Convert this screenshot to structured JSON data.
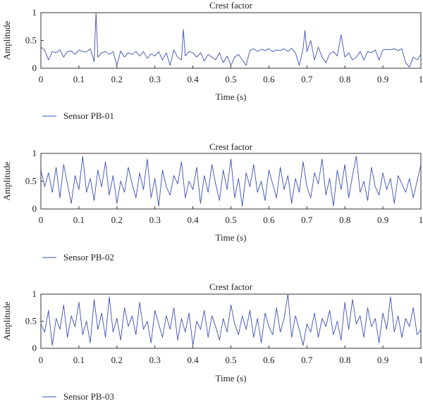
{
  "colors": {
    "series": "#3b4fb3",
    "axis": "#333333"
  },
  "chart_data": [
    {
      "type": "line",
      "title": "Crest factor",
      "xlabel": "Time (s)",
      "ylabel": "Amplitude",
      "xlim": [
        0,
        1
      ],
      "ylim": [
        0,
        1
      ],
      "xticks": [
        0,
        0.1,
        0.2,
        0.3,
        0.4,
        0.5,
        0.6,
        0.7,
        0.8,
        0.9,
        1
      ],
      "xtick_labels": [
        "0",
        "0.1",
        "0.2",
        "0.3",
        "0.4",
        "0.5",
        "0.6",
        "0.7",
        "0.8",
        "0.9",
        "1"
      ],
      "yticks": [
        0,
        0.5,
        1
      ],
      "ytick_labels": [
        "0",
        "0.5",
        "1"
      ],
      "grid": false,
      "legend_position": "bottom-left",
      "series": [
        {
          "name": "Sensor PB-01",
          "x": [
            0,
            0.01,
            0.02,
            0.03,
            0.04,
            0.05,
            0.06,
            0.07,
            0.08,
            0.09,
            0.1,
            0.11,
            0.12,
            0.13,
            0.14,
            0.145,
            0.15,
            0.16,
            0.17,
            0.18,
            0.19,
            0.2,
            0.21,
            0.22,
            0.23,
            0.24,
            0.25,
            0.26,
            0.27,
            0.28,
            0.29,
            0.3,
            0.31,
            0.32,
            0.33,
            0.34,
            0.35,
            0.36,
            0.37,
            0.375,
            0.38,
            0.39,
            0.4,
            0.41,
            0.42,
            0.43,
            0.44,
            0.45,
            0.46,
            0.47,
            0.48,
            0.49,
            0.5,
            0.51,
            0.52,
            0.53,
            0.54,
            0.55,
            0.56,
            0.57,
            0.58,
            0.59,
            0.6,
            0.61,
            0.62,
            0.63,
            0.64,
            0.65,
            0.66,
            0.67,
            0.68,
            0.69,
            0.695,
            0.7,
            0.71,
            0.72,
            0.73,
            0.74,
            0.75,
            0.76,
            0.77,
            0.78,
            0.79,
            0.8,
            0.81,
            0.82,
            0.83,
            0.84,
            0.85,
            0.86,
            0.87,
            0.88,
            0.89,
            0.9,
            0.91,
            0.92,
            0.93,
            0.94,
            0.95,
            0.96,
            0.97,
            0.98,
            0.99,
            1.0
          ],
          "y": [
            0.38,
            0.32,
            0.15,
            0.3,
            0.28,
            0.33,
            0.2,
            0.3,
            0.31,
            0.25,
            0.33,
            0.3,
            0.29,
            0.35,
            0.12,
            1.0,
            0.2,
            0.28,
            0.3,
            0.25,
            0.3,
            0.05,
            0.31,
            0.2,
            0.28,
            0.25,
            0.3,
            0.22,
            0.3,
            0.18,
            0.26,
            0.22,
            0.3,
            0.15,
            0.28,
            0.05,
            0.33,
            0.2,
            0.15,
            0.7,
            0.22,
            0.3,
            0.28,
            0.2,
            0.28,
            0.13,
            0.25,
            0.2,
            0.15,
            0.28,
            0.1,
            0.22,
            0.05,
            0.2,
            0.25,
            0.15,
            0.05,
            0.32,
            0.35,
            0.3,
            0.34,
            0.32,
            0.35,
            0.3,
            0.33,
            0.32,
            0.35,
            0.3,
            0.36,
            0.28,
            0.05,
            0.35,
            0.68,
            0.3,
            0.5,
            0.15,
            0.38,
            0.2,
            0.1,
            0.26,
            0.3,
            0.22,
            0.6,
            0.2,
            0.28,
            0.15,
            0.2,
            0.3,
            0.15,
            0.3,
            0.28,
            0.33,
            0.15,
            0.33,
            0.34,
            0.33,
            0.35,
            0.32,
            0.35,
            0.1,
            0.02,
            0.2,
            0.15,
            0.25
          ]
        }
      ]
    },
    {
      "type": "line",
      "title": "Crest factor",
      "xlabel": "Time (s)",
      "ylabel": "Amplitude",
      "xlim": [
        0,
        1
      ],
      "ylim": [
        0,
        1
      ],
      "xticks": [
        0,
        0.1,
        0.2,
        0.3,
        0.4,
        0.5,
        0.6,
        0.7,
        0.8,
        0.9,
        1
      ],
      "xtick_labels": [
        "0",
        "0.1",
        "0.2",
        "0.3",
        "0.4",
        "0.5",
        "0.6",
        "0.7",
        "0.8",
        "0.9",
        "1"
      ],
      "yticks": [
        0,
        0.5,
        1
      ],
      "ytick_labels": [
        "0",
        "0.5",
        "1"
      ],
      "grid": false,
      "legend_position": "bottom-left",
      "series": [
        {
          "name": "Sensor PB-02",
          "x": [
            0,
            0.01,
            0.02,
            0.03,
            0.04,
            0.05,
            0.06,
            0.07,
            0.08,
            0.09,
            0.1,
            0.11,
            0.12,
            0.13,
            0.14,
            0.15,
            0.16,
            0.17,
            0.18,
            0.19,
            0.2,
            0.21,
            0.22,
            0.23,
            0.24,
            0.25,
            0.26,
            0.27,
            0.28,
            0.29,
            0.3,
            0.31,
            0.32,
            0.33,
            0.34,
            0.35,
            0.36,
            0.37,
            0.38,
            0.39,
            0.4,
            0.41,
            0.42,
            0.43,
            0.44,
            0.45,
            0.46,
            0.47,
            0.48,
            0.49,
            0.5,
            0.51,
            0.52,
            0.53,
            0.54,
            0.55,
            0.56,
            0.57,
            0.58,
            0.59,
            0.6,
            0.61,
            0.62,
            0.63,
            0.64,
            0.65,
            0.66,
            0.67,
            0.68,
            0.69,
            0.7,
            0.71,
            0.72,
            0.73,
            0.74,
            0.75,
            0.76,
            0.77,
            0.78,
            0.79,
            0.8,
            0.81,
            0.82,
            0.83,
            0.84,
            0.85,
            0.86,
            0.87,
            0.88,
            0.89,
            0.9,
            0.91,
            0.92,
            0.93,
            0.94,
            0.95,
            0.96,
            0.97,
            0.98,
            0.99,
            1.0
          ],
          "y": [
            0.7,
            0.4,
            0.65,
            0.3,
            0.75,
            0.2,
            0.8,
            0.45,
            0.1,
            0.6,
            0.35,
            0.95,
            0.3,
            0.55,
            0.15,
            0.7,
            0.4,
            0.85,
            0.25,
            0.6,
            0.1,
            0.5,
            0.3,
            0.75,
            0.45,
            0.2,
            0.65,
            0.35,
            0.9,
            0.2,
            0.55,
            0.05,
            0.7,
            0.4,
            0.25,
            0.6,
            0.45,
            0.85,
            0.2,
            0.5,
            0.35,
            0.75,
            0.1,
            0.6,
            0.3,
            0.8,
            0.45,
            0.15,
            0.7,
            0.35,
            0.9,
            0.2,
            0.55,
            0.05,
            0.65,
            0.4,
            0.8,
            0.3,
            0.5,
            0.15,
            0.7,
            0.45,
            0.2,
            0.75,
            0.35,
            0.6,
            0.1,
            0.55,
            0.3,
            0.85,
            0.4,
            0.2,
            0.65,
            0.45,
            0.9,
            0.25,
            0.55,
            0.05,
            0.7,
            0.35,
            0.8,
            0.2,
            0.6,
            0.95,
            0.3,
            0.5,
            0.15,
            0.75,
            0.4,
            0.25,
            0.65,
            0.35,
            0.55,
            0.1,
            0.6,
            0.45,
            0.3,
            0.55,
            0.2,
            0.5,
            0.8
          ]
        }
      ]
    },
    {
      "type": "line",
      "title": "Crest factor",
      "xlabel": "Time (s)",
      "ylabel": "Amplitude",
      "xlim": [
        0,
        1
      ],
      "ylim": [
        0,
        1
      ],
      "xticks": [
        0,
        0.1,
        0.2,
        0.3,
        0.4,
        0.5,
        0.6,
        0.7,
        0.8,
        0.9,
        1
      ],
      "xtick_labels": [
        "0",
        "0.1",
        "0.2",
        "0.3",
        "0.4",
        "0.5",
        "0.6",
        "0.7",
        "0.8",
        "0.9",
        "1"
      ],
      "yticks": [
        0,
        0.5,
        1
      ],
      "ytick_labels": [
        "0",
        "0.5",
        "1"
      ],
      "grid": false,
      "legend_position": "bottom-left",
      "series": [
        {
          "name": "Sensor PB-03",
          "x": [
            0,
            0.01,
            0.02,
            0.03,
            0.04,
            0.05,
            0.06,
            0.07,
            0.08,
            0.09,
            0.1,
            0.11,
            0.12,
            0.13,
            0.14,
            0.15,
            0.16,
            0.17,
            0.18,
            0.19,
            0.2,
            0.21,
            0.22,
            0.23,
            0.24,
            0.25,
            0.26,
            0.27,
            0.28,
            0.29,
            0.3,
            0.31,
            0.32,
            0.33,
            0.34,
            0.35,
            0.36,
            0.37,
            0.38,
            0.39,
            0.4,
            0.41,
            0.42,
            0.43,
            0.44,
            0.45,
            0.46,
            0.47,
            0.48,
            0.49,
            0.5,
            0.51,
            0.52,
            0.53,
            0.54,
            0.55,
            0.56,
            0.57,
            0.58,
            0.59,
            0.6,
            0.61,
            0.62,
            0.63,
            0.64,
            0.65,
            0.66,
            0.67,
            0.68,
            0.69,
            0.7,
            0.71,
            0.72,
            0.73,
            0.74,
            0.75,
            0.76,
            0.77,
            0.78,
            0.79,
            0.8,
            0.81,
            0.82,
            0.83,
            0.84,
            0.85,
            0.86,
            0.87,
            0.88,
            0.89,
            0.9,
            0.91,
            0.92,
            0.93,
            0.94,
            0.95,
            0.96,
            0.97,
            0.98,
            0.99,
            1.0
          ],
          "y": [
            0.45,
            0.3,
            0.7,
            0.05,
            0.55,
            0.35,
            0.8,
            0.2,
            0.6,
            0.4,
            0.85,
            0.25,
            0.5,
            0.1,
            0.9,
            0.35,
            0.65,
            0.2,
            0.95,
            0.3,
            0.55,
            0.15,
            0.75,
            0.4,
            0.6,
            0.25,
            0.85,
            0.35,
            0.5,
            0.1,
            0.7,
            0.45,
            0.2,
            0.6,
            0.35,
            0.75,
            0.15,
            0.55,
            0.3,
            0.65,
            0.05,
            0.5,
            0.35,
            0.7,
            0.2,
            0.6,
            0.4,
            0.15,
            0.55,
            0.3,
            0.8,
            0.45,
            0.25,
            0.6,
            0.35,
            0.7,
            0.2,
            0.55,
            0.1,
            0.65,
            0.4,
            0.25,
            0.75,
            0.3,
            0.55,
            1.0,
            0.2,
            0.6,
            0.35,
            0.05,
            0.45,
            0.3,
            0.65,
            0.2,
            0.55,
            0.4,
            0.7,
            0.25,
            0.5,
            0.15,
            0.85,
            0.35,
            0.9,
            0.45,
            0.6,
            0.2,
            0.75,
            0.4,
            0.55,
            0.1,
            0.65,
            0.35,
            0.95,
            0.3,
            0.6,
            0.2,
            0.55,
            0.4,
            0.75,
            0.25,
            0.35
          ]
        }
      ]
    }
  ]
}
